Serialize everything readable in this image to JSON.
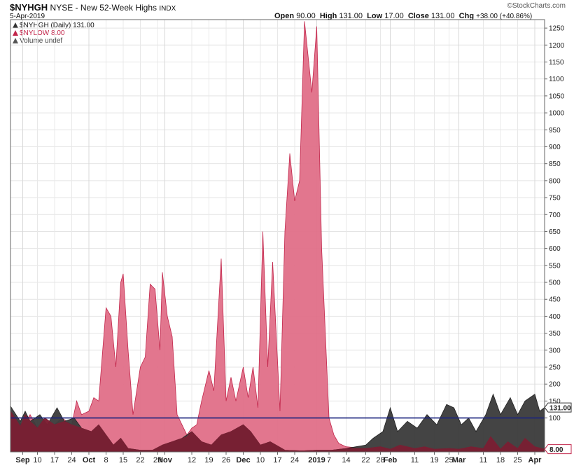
{
  "header": {
    "symbol": "$NYHGH",
    "description": "NYSE - New 52-Week Highs",
    "exchange": "INDX",
    "date": "5-Apr-2019",
    "brand": "©StockCharts.com",
    "ohlc": {
      "open_label": "Open",
      "open": "90.00",
      "high_label": "High",
      "high": "131.00",
      "low_label": "Low",
      "low": "17.00",
      "close_label": "Close",
      "close": "131.00",
      "chg_label": "Chg",
      "chg": "+38.00 (+40.86%)"
    }
  },
  "legend": [
    {
      "text": "$NYHGH (Daily) 131.00",
      "color": "#333333"
    },
    {
      "text": "$NYLOW 8.00",
      "color": "#c2264b"
    },
    {
      "text": "Volume undef",
      "color": "#555555"
    }
  ],
  "chart_data": {
    "type": "area",
    "x_start": "2018-08-30",
    "x_end": "2019-04-05",
    "ylim": [
      0,
      1275
    ],
    "yticks": [
      100,
      150,
      200,
      250,
      300,
      350,
      400,
      450,
      500,
      550,
      600,
      650,
      700,
      750,
      800,
      850,
      900,
      950,
      1000,
      1050,
      1100,
      1150,
      1200,
      1250
    ],
    "reference_line": 100,
    "last_value_labels": [
      {
        "series": "$NYHGH",
        "label": "131.00",
        "value": 131
      },
      {
        "series": "$NYLOW",
        "label": "8.00",
        "value": 8
      }
    ],
    "xticks": [
      {
        "label": "Sep",
        "date": "2018-09-04",
        "bold": true
      },
      {
        "label": "10",
        "date": "2018-09-10"
      },
      {
        "label": "17",
        "date": "2018-09-17"
      },
      {
        "label": "24",
        "date": "2018-09-24"
      },
      {
        "label": "Oct",
        "date": "2018-10-01",
        "bold": true
      },
      {
        "label": "8",
        "date": "2018-10-08"
      },
      {
        "label": "15",
        "date": "2018-10-15"
      },
      {
        "label": "22",
        "date": "2018-10-22"
      },
      {
        "label": "29",
        "date": "2018-10-29"
      },
      {
        "label": "Nov",
        "date": "2018-11-01",
        "bold": true
      },
      {
        "label": "12",
        "date": "2018-11-12"
      },
      {
        "label": "19",
        "date": "2018-11-19"
      },
      {
        "label": "26",
        "date": "2018-11-26"
      },
      {
        "label": "Dec",
        "date": "2018-12-03",
        "bold": true
      },
      {
        "label": "10",
        "date": "2018-12-10"
      },
      {
        "label": "17",
        "date": "2018-12-17"
      },
      {
        "label": "24",
        "date": "2018-12-24"
      },
      {
        "label": "2019",
        "date": "2019-01-02",
        "bold": true
      },
      {
        "label": "7",
        "date": "2019-01-07"
      },
      {
        "label": "14",
        "date": "2019-01-14"
      },
      {
        "label": "22",
        "date": "2019-01-22"
      },
      {
        "label": "28",
        "date": "2019-01-28"
      },
      {
        "label": "Feb",
        "date": "2019-02-01",
        "bold": true
      },
      {
        "label": "11",
        "date": "2019-02-11"
      },
      {
        "label": "19",
        "date": "2019-02-19"
      },
      {
        "label": "25",
        "date": "2019-02-25"
      },
      {
        "label": "Mar",
        "date": "2019-03-01",
        "bold": true
      },
      {
        "label": "11",
        "date": "2019-03-11"
      },
      {
        "label": "18",
        "date": "2019-03-18"
      },
      {
        "label": "25",
        "date": "2019-03-25"
      },
      {
        "label": "Apr",
        "date": "2019-04-01",
        "bold": true
      }
    ],
    "series": [
      {
        "name": "$NYLOW",
        "color": "#e06f88",
        "stroke": "#c2264b",
        "points": [
          [
            "2018-08-30",
            120
          ],
          [
            "2018-09-04",
            75
          ],
          [
            "2018-09-07",
            110
          ],
          [
            "2018-09-10",
            70
          ],
          [
            "2018-09-13",
            100
          ],
          [
            "2018-09-17",
            80
          ],
          [
            "2018-09-20",
            100
          ],
          [
            "2018-09-24",
            80
          ],
          [
            "2018-09-26",
            150
          ],
          [
            "2018-09-28",
            110
          ],
          [
            "2018-10-01",
            120
          ],
          [
            "2018-10-03",
            160
          ],
          [
            "2018-10-05",
            150
          ],
          [
            "2018-10-08",
            425
          ],
          [
            "2018-10-10",
            400
          ],
          [
            "2018-10-12",
            250
          ],
          [
            "2018-10-14",
            500
          ],
          [
            "2018-10-15",
            525
          ],
          [
            "2018-10-17",
            300
          ],
          [
            "2018-10-19",
            110
          ],
          [
            "2018-10-22",
            250
          ],
          [
            "2018-10-24",
            280
          ],
          [
            "2018-10-26",
            495
          ],
          [
            "2018-10-28",
            480
          ],
          [
            "2018-10-30",
            300
          ],
          [
            "2018-10-31",
            530
          ],
          [
            "2018-11-02",
            400
          ],
          [
            "2018-11-04",
            340
          ],
          [
            "2018-11-06",
            110
          ],
          [
            "2018-11-08",
            80
          ],
          [
            "2018-11-10",
            50
          ],
          [
            "2018-11-12",
            70
          ],
          [
            "2018-11-14",
            80
          ],
          [
            "2018-11-16",
            150
          ],
          [
            "2018-11-19",
            240
          ],
          [
            "2018-11-21",
            180
          ],
          [
            "2018-11-24",
            570
          ],
          [
            "2018-11-26",
            150
          ],
          [
            "2018-11-28",
            220
          ],
          [
            "2018-11-30",
            150
          ],
          [
            "2018-12-03",
            250
          ],
          [
            "2018-12-05",
            160
          ],
          [
            "2018-12-07",
            250
          ],
          [
            "2018-12-09",
            130
          ],
          [
            "2018-12-11",
            650
          ],
          [
            "2018-12-13",
            250
          ],
          [
            "2018-12-15",
            560
          ],
          [
            "2018-12-18",
            120
          ],
          [
            "2018-12-20",
            650
          ],
          [
            "2018-12-22",
            880
          ],
          [
            "2018-12-24",
            740
          ],
          [
            "2018-12-26",
            800
          ],
          [
            "2018-12-28",
            1270
          ],
          [
            "2018-12-31",
            1060
          ],
          [
            "2019-01-02",
            1255
          ],
          [
            "2019-01-04",
            600
          ],
          [
            "2019-01-07",
            100
          ],
          [
            "2019-01-09",
            50
          ],
          [
            "2019-01-11",
            25
          ],
          [
            "2019-01-14",
            15
          ],
          [
            "2019-01-22",
            10
          ],
          [
            "2019-01-28",
            15
          ],
          [
            "2019-02-01",
            8
          ],
          [
            "2019-02-11",
            10
          ],
          [
            "2019-02-19",
            8
          ],
          [
            "2019-02-25",
            10
          ],
          [
            "2019-03-01",
            8
          ],
          [
            "2019-03-11",
            10
          ],
          [
            "2019-03-18",
            8
          ],
          [
            "2019-03-25",
            10
          ],
          [
            "2019-04-05",
            8
          ]
        ]
      },
      {
        "name": "$NYHGH",
        "color": "#3a3a3a",
        "stroke": "#222222",
        "points": [
          [
            "2018-08-30",
            135
          ],
          [
            "2018-09-03",
            90
          ],
          [
            "2018-09-05",
            120
          ],
          [
            "2018-09-07",
            90
          ],
          [
            "2018-09-11",
            110
          ],
          [
            "2018-09-14",
            80
          ],
          [
            "2018-09-18",
            130
          ],
          [
            "2018-09-21",
            90
          ],
          [
            "2018-09-25",
            100
          ],
          [
            "2018-09-28",
            70
          ],
          [
            "2018-10-02",
            60
          ],
          [
            "2018-10-05",
            80
          ],
          [
            "2018-10-08",
            50
          ],
          [
            "2018-10-11",
            20
          ],
          [
            "2018-10-14",
            40
          ],
          [
            "2018-10-17",
            10
          ],
          [
            "2018-10-22",
            5
          ],
          [
            "2018-10-27",
            5
          ],
          [
            "2018-10-31",
            20
          ],
          [
            "2018-11-04",
            30
          ],
          [
            "2018-11-08",
            40
          ],
          [
            "2018-11-12",
            60
          ],
          [
            "2018-11-16",
            30
          ],
          [
            "2018-11-20",
            20
          ],
          [
            "2018-11-24",
            50
          ],
          [
            "2018-11-28",
            60
          ],
          [
            "2018-12-03",
            80
          ],
          [
            "2018-12-06",
            60
          ],
          [
            "2018-12-10",
            20
          ],
          [
            "2018-12-14",
            30
          ],
          [
            "2018-12-20",
            5
          ],
          [
            "2018-12-27",
            3
          ],
          [
            "2019-01-02",
            5
          ],
          [
            "2019-01-08",
            5
          ],
          [
            "2019-01-14",
            10
          ],
          [
            "2019-01-18",
            15
          ],
          [
            "2019-01-22",
            20
          ],
          [
            "2019-01-25",
            40
          ],
          [
            "2019-01-29",
            60
          ],
          [
            "2019-02-01",
            130
          ],
          [
            "2019-02-04",
            60
          ],
          [
            "2019-02-08",
            90
          ],
          [
            "2019-02-12",
            70
          ],
          [
            "2019-02-16",
            110
          ],
          [
            "2019-02-20",
            80
          ],
          [
            "2019-02-24",
            140
          ],
          [
            "2019-02-27",
            130
          ],
          [
            "2019-03-02",
            80
          ],
          [
            "2019-03-05",
            100
          ],
          [
            "2019-03-08",
            60
          ],
          [
            "2019-03-12",
            110
          ],
          [
            "2019-03-15",
            170
          ],
          [
            "2019-03-18",
            110
          ],
          [
            "2019-03-22",
            160
          ],
          [
            "2019-03-25",
            110
          ],
          [
            "2019-03-28",
            150
          ],
          [
            "2019-04-01",
            170
          ],
          [
            "2019-04-03",
            120
          ],
          [
            "2019-04-05",
            131
          ]
        ]
      },
      {
        "name": "$NYLOW-overlap",
        "color": "#7a1f33",
        "stroke": "#7a1f33",
        "points": [
          [
            "2018-08-30",
            120
          ],
          [
            "2018-09-03",
            75
          ],
          [
            "2018-09-05",
            110
          ],
          [
            "2018-09-07",
            90
          ],
          [
            "2018-09-10",
            70
          ],
          [
            "2018-09-13",
            100
          ],
          [
            "2018-09-17",
            80
          ],
          [
            "2018-09-21",
            90
          ],
          [
            "2018-09-24",
            80
          ],
          [
            "2018-09-28",
            70
          ],
          [
            "2018-10-02",
            60
          ],
          [
            "2018-10-05",
            80
          ],
          [
            "2018-10-08",
            50
          ],
          [
            "2018-10-11",
            20
          ],
          [
            "2018-10-14",
            40
          ],
          [
            "2018-10-17",
            10
          ],
          [
            "2018-10-22",
            5
          ],
          [
            "2018-10-27",
            5
          ],
          [
            "2018-10-31",
            20
          ],
          [
            "2018-11-04",
            30
          ],
          [
            "2018-11-08",
            40
          ],
          [
            "2018-11-10",
            45
          ],
          [
            "2018-11-12",
            60
          ],
          [
            "2018-11-16",
            30
          ],
          [
            "2018-11-20",
            20
          ],
          [
            "2018-11-24",
            50
          ],
          [
            "2018-11-28",
            60
          ],
          [
            "2018-12-03",
            80
          ],
          [
            "2018-12-06",
            60
          ],
          [
            "2018-12-10",
            20
          ],
          [
            "2018-12-14",
            30
          ],
          [
            "2018-12-20",
            5
          ],
          [
            "2018-12-27",
            3
          ],
          [
            "2019-01-02",
            5
          ],
          [
            "2019-01-08",
            5
          ],
          [
            "2019-01-14",
            10
          ],
          [
            "2019-01-22",
            10
          ],
          [
            "2019-01-28",
            15
          ],
          [
            "2019-02-01",
            8
          ],
          [
            "2019-02-05",
            20
          ],
          [
            "2019-02-11",
            10
          ],
          [
            "2019-02-15",
            15
          ],
          [
            "2019-02-19",
            8
          ],
          [
            "2019-02-25",
            10
          ],
          [
            "2019-03-01",
            8
          ],
          [
            "2019-03-06",
            15
          ],
          [
            "2019-03-11",
            10
          ],
          [
            "2019-03-14",
            45
          ],
          [
            "2019-03-18",
            8
          ],
          [
            "2019-03-21",
            30
          ],
          [
            "2019-03-25",
            10
          ],
          [
            "2019-03-28",
            40
          ],
          [
            "2019-04-01",
            15
          ],
          [
            "2019-04-05",
            8
          ]
        ]
      }
    ]
  }
}
